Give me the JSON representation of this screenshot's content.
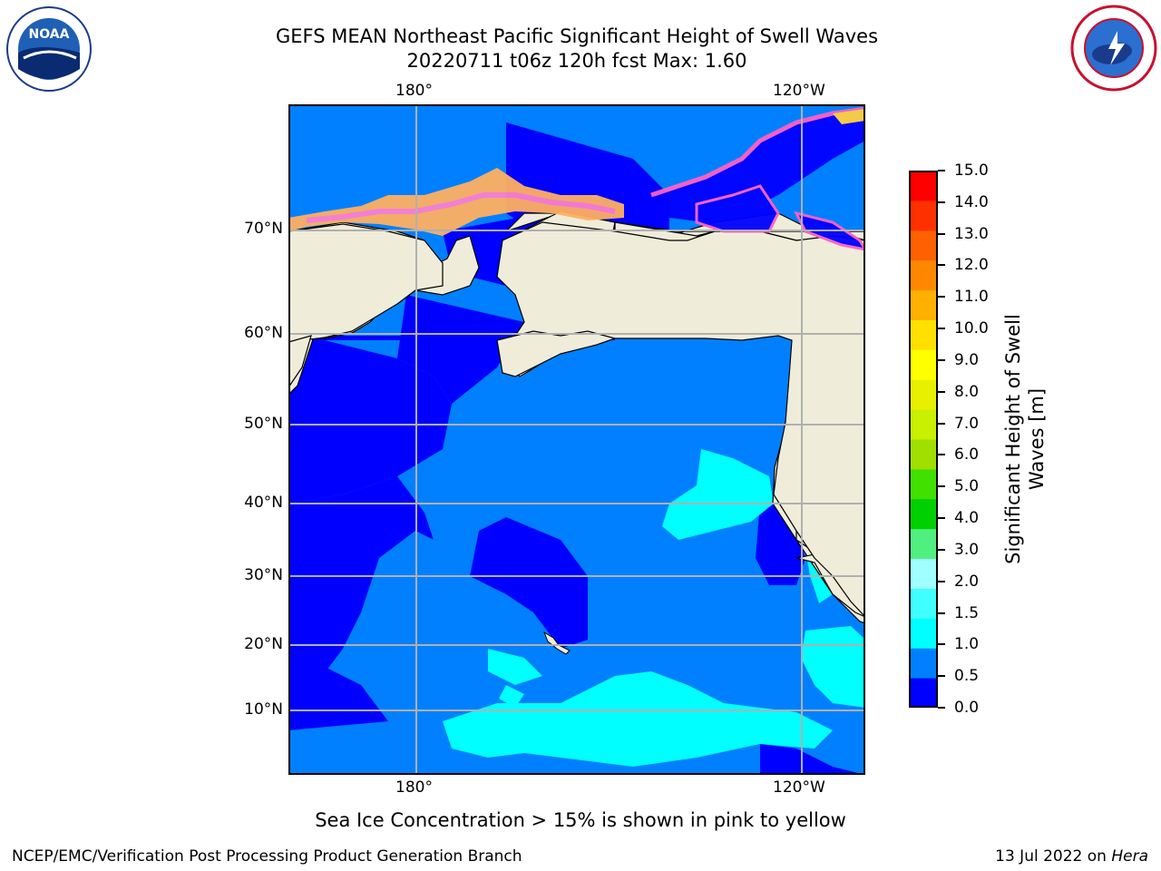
{
  "header": {
    "title_line1": "GEFS MEAN Northeast Pacific Significant Height of Swell Waves",
    "title_line2": "20220711 t06z 120h fcst   Max: 1.60",
    "left_logo_text": "NOAA",
    "left_logo_ring": "NATIONAL OCEANIC AND ATMOSPHERIC ADMINISTRATION · U.S. DEPARTMENT OF COMMERCE",
    "right_logo_ring": "NATIONAL WEATHER SERVICE"
  },
  "map": {
    "lon_ticks_top": [
      "180°",
      "120°W"
    ],
    "lon_ticks_bottom": [
      "180°",
      "120°W"
    ],
    "lat_ticks": [
      "70°N",
      "60°N",
      "50°N",
      "40°N",
      "30°N",
      "20°N",
      "10°N"
    ],
    "colors": {
      "land": "#efedda",
      "ocean_0_0_5": "#0000ff",
      "ocean_0_5_1_0": "#0080ff",
      "ocean_1_0_1_5": "#00ffff",
      "grid": "#b0b0b0",
      "coast": "#000000"
    }
  },
  "colorbar": {
    "label": "Significant Height of Swell Waves [m]",
    "ticks": [
      "15.0",
      "14.0",
      "13.0",
      "12.0",
      "11.0",
      "10.0",
      "9.0",
      "8.0",
      "7.0",
      "6.0",
      "5.0",
      "4.0",
      "3.0",
      "2.0",
      "1.5",
      "1.0",
      "0.5",
      "0.0"
    ],
    "colors_bottom_to_top": [
      "#0000ff",
      "#0080ff",
      "#00ffff",
      "#40ffff",
      "#a0ffff",
      "#50f080",
      "#00d000",
      "#40e000",
      "#a0e000",
      "#c8f000",
      "#e8f000",
      "#ffff00",
      "#ffe000",
      "#ffb000",
      "#ff8800",
      "#ff6000",
      "#ff3000",
      "#ff0000"
    ]
  },
  "caption": "Sea Ice Concentration > 15% is shown in pink to yellow",
  "footer": {
    "left": "NCEP/EMC/Verification Post Processing Product Generation Branch",
    "right_date": "13 Jul 2022 on ",
    "right_machine": "Hera"
  }
}
